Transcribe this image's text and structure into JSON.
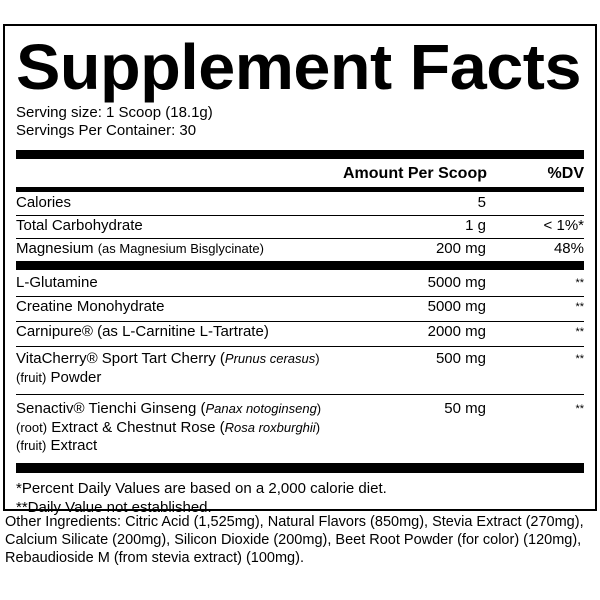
{
  "title": "Supplement Facts",
  "serving_size": "Serving size: 1 Scoop (18.1g)",
  "servings_per_container": "Servings Per Container: 30",
  "header": {
    "amount": "Amount Per Scoop",
    "dv": "%DV"
  },
  "nutrients": [
    {
      "name": "Calories",
      "note": "",
      "amount": "5",
      "dv": ""
    },
    {
      "name": "Total Carbohydrate",
      "note": "",
      "amount": "1 g",
      "dv": "< 1%*"
    },
    {
      "name": "Magnesium",
      "note": "(as Magnesium Bisglycinate)",
      "amount": "200 mg",
      "dv": "48%"
    }
  ],
  "ingredients": [
    {
      "name": "L-Glutamine",
      "amount": "5000 mg",
      "dv": "**"
    },
    {
      "name": "Creatine Monohydrate",
      "amount": "5000 mg",
      "dv": "**"
    },
    {
      "name": "Carnipure® (as L-Carnitine L-Tartrate)",
      "amount": "2000 mg",
      "dv": "**"
    },
    {
      "name_a": "VitaCherry® Sport Tart Cherry (",
      "latin1": "Prunus cerasus",
      "name_b": ")",
      "part1": "(fruit)",
      "name_c": " Powder",
      "amount": "500 mg",
      "dv": "**"
    },
    {
      "name_a": "Senactiv® Tienchi Ginseng (",
      "latin1": "Panax notoginseng",
      "name_b": ")",
      "part1": "(root)",
      "name_c": " Extract & Chestnut Rose (",
      "latin2": "Rosa roxburghii",
      "name_d": ")",
      "part2": "(fruit)",
      "name_e": " Extract",
      "amount": "50 mg",
      "dv": "**"
    }
  ],
  "footnotes": [
    "*Percent Daily Values are based on a 2,000 calorie diet.",
    "**Daily Value not established."
  ],
  "other_ingredients": "Other Ingredients: Citric Acid (1,525mg), Natural Flavors (850mg), Stevia Extract (270mg), Calcium Silicate (200mg), Silicon Dioxide (200mg), Beet Root Powder (for color) (120mg), Rebaudioside M (from stevia extract) (100mg)."
}
